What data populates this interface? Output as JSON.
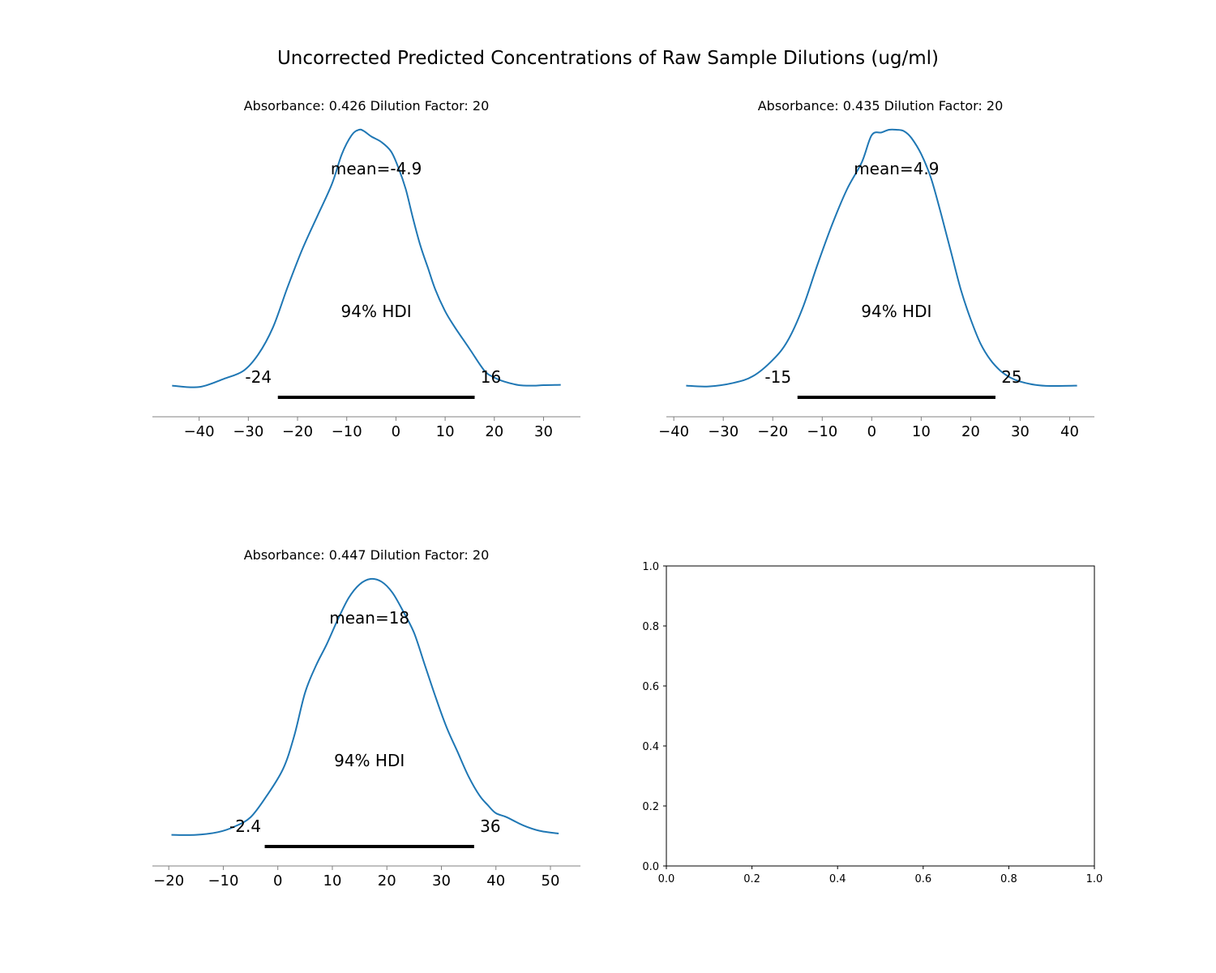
{
  "figure": {
    "suptitle": "Uncorrected Predicted Concentrations of Raw Sample Dilutions (ug/ml)"
  },
  "colors": {
    "density": "#1f77b4",
    "hdi_bar": "#000000",
    "axis": "#808080",
    "empty_axis": "#000000"
  },
  "chart_data": [
    {
      "type": "line",
      "title": "Absorbance: 0.426 Dilution Factor: 20",
      "mean_label": "mean=-4.9",
      "hdi_label": "94% HDI",
      "hdi": [
        -24,
        16
      ],
      "hdi_low_label": "-24",
      "hdi_high_label": "16",
      "xlim": [
        -49.5,
        37.5
      ],
      "xticks": [
        -40,
        -30,
        -20,
        -10,
        0,
        10,
        20,
        30
      ],
      "xtick_labels": [
        "−40",
        "−30",
        "−20",
        "−10",
        "0",
        "10",
        "20",
        "30"
      ],
      "density": {
        "x": [
          -45.5,
          -40,
          -35,
          -31,
          -28,
          -25,
          -22,
          -19,
          -16,
          -13,
          -11,
          -9,
          -7.5,
          -6.5,
          -5,
          -3,
          -1,
          0.5,
          2,
          3.5,
          5,
          6.5,
          8,
          10,
          12,
          15,
          18,
          20,
          22,
          25,
          28,
          30,
          33.5
        ],
        "y": [
          0.055,
          0.05,
          0.08,
          0.11,
          0.17,
          0.27,
          0.42,
          0.56,
          0.68,
          0.8,
          0.91,
          0.98,
          1.0,
          0.995,
          0.975,
          0.955,
          0.92,
          0.86,
          0.78,
          0.67,
          0.57,
          0.49,
          0.41,
          0.33,
          0.27,
          0.19,
          0.11,
          0.085,
          0.07,
          0.057,
          0.055,
          0.057,
          0.058
        ]
      }
    },
    {
      "type": "line",
      "title": "Absorbance: 0.435 Dilution Factor: 20",
      "mean_label": "mean=4.9",
      "hdi_label": "94% HDI",
      "hdi": [
        -15,
        25
      ],
      "hdi_low_label": "-15",
      "hdi_high_label": "25",
      "xlim": [
        -41.5,
        45
      ],
      "xticks": [
        -40,
        -30,
        -20,
        -10,
        0,
        10,
        20,
        30,
        40
      ],
      "xtick_labels": [
        "−40",
        "−30",
        "−20",
        "−10",
        "0",
        "10",
        "20",
        "30",
        "40"
      ],
      "density": {
        "x": [
          -37.5,
          -33,
          -28,
          -24,
          -20,
          -17,
          -14,
          -11,
          -8,
          -5,
          -2,
          0,
          2,
          3.5,
          5,
          6.5,
          8,
          10,
          12,
          14,
          16,
          18,
          20,
          22,
          24,
          26,
          28,
          30,
          33,
          36,
          41.5
        ],
        "y": [
          0.055,
          0.052,
          0.065,
          0.09,
          0.15,
          0.22,
          0.34,
          0.5,
          0.65,
          0.78,
          0.88,
          0.98,
          0.99,
          1.0,
          1.0,
          0.995,
          0.97,
          0.91,
          0.82,
          0.69,
          0.55,
          0.41,
          0.3,
          0.21,
          0.15,
          0.11,
          0.085,
          0.07,
          0.058,
          0.054,
          0.055
        ]
      }
    },
    {
      "type": "line",
      "title": "Absorbance: 0.447 Dilution Factor: 20",
      "mean_label": "mean=18",
      "hdi_label": "94% HDI",
      "hdi": [
        -2.4,
        36
      ],
      "hdi_low_label": "-2.4",
      "hdi_high_label": "36",
      "xlim": [
        -23,
        55.5
      ],
      "xticks": [
        -20,
        -10,
        0,
        10,
        20,
        30,
        40,
        50
      ],
      "xtick_labels": [
        "−20",
        "−10",
        "0",
        "10",
        "20",
        "30",
        "40",
        "50"
      ],
      "density": {
        "x": [
          -19.5,
          -15,
          -11,
          -8,
          -5,
          -2,
          1,
          3,
          5,
          7,
          9,
          11,
          13,
          15,
          17,
          19,
          21,
          23,
          25,
          27,
          29,
          31,
          33,
          35,
          37,
          38.5,
          40,
          42,
          45,
          48,
          51.5
        ],
        "y": [
          0.055,
          0.055,
          0.065,
          0.085,
          0.12,
          0.2,
          0.3,
          0.42,
          0.58,
          0.68,
          0.76,
          0.85,
          0.93,
          0.98,
          1.0,
          0.99,
          0.95,
          0.88,
          0.8,
          0.68,
          0.56,
          0.45,
          0.36,
          0.27,
          0.2,
          0.165,
          0.135,
          0.12,
          0.09,
          0.07,
          0.06
        ]
      }
    },
    {
      "type": "line",
      "title": "",
      "xlim": [
        0,
        1
      ],
      "ylim": [
        0,
        1
      ],
      "xticks": [
        0.0,
        0.2,
        0.4,
        0.6,
        0.8,
        1.0
      ],
      "yticks": [
        0.0,
        0.2,
        0.4,
        0.6,
        0.8,
        1.0
      ],
      "xtick_labels": [
        "0.0",
        "0.2",
        "0.4",
        "0.6",
        "0.8",
        "1.0"
      ],
      "ytick_labels": [
        "0.0",
        "0.2",
        "0.4",
        "0.6",
        "0.8",
        "1.0"
      ]
    }
  ]
}
